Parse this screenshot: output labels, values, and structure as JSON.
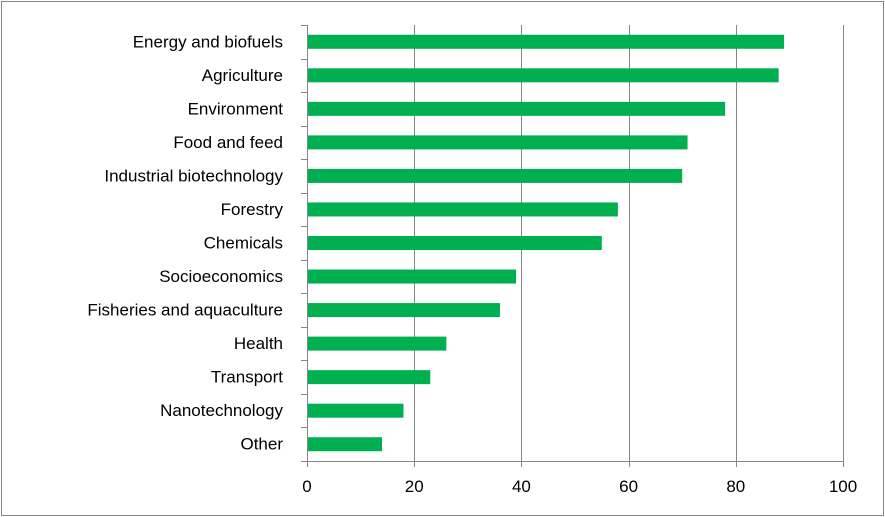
{
  "chart_data": {
    "type": "bar",
    "orientation": "horizontal",
    "title": "",
    "xlabel": "",
    "ylabel": "",
    "categories": [
      "Energy and biofuels",
      "Agriculture",
      "Environment",
      "Food and feed",
      "Industrial biotechnology",
      "Forestry",
      "Chemicals",
      "Socioeconomics",
      "Fisheries and aquaculture",
      "Health",
      "Transport",
      "Nanotechnology",
      "Other"
    ],
    "values": [
      89,
      88,
      78,
      71,
      70,
      58,
      55,
      39,
      36,
      26,
      23,
      18,
      14
    ],
    "xlim": [
      0,
      100
    ],
    "xticks": [
      0,
      20,
      40,
      60,
      80,
      100
    ],
    "xtick_labels": [
      "0",
      "20",
      "40",
      "60",
      "80",
      "100"
    ],
    "grid": "vertical",
    "legend": "none",
    "colors": {
      "bar": "#00b050",
      "grid": "#868686",
      "axis": "#868686",
      "frame": "#868686"
    }
  }
}
